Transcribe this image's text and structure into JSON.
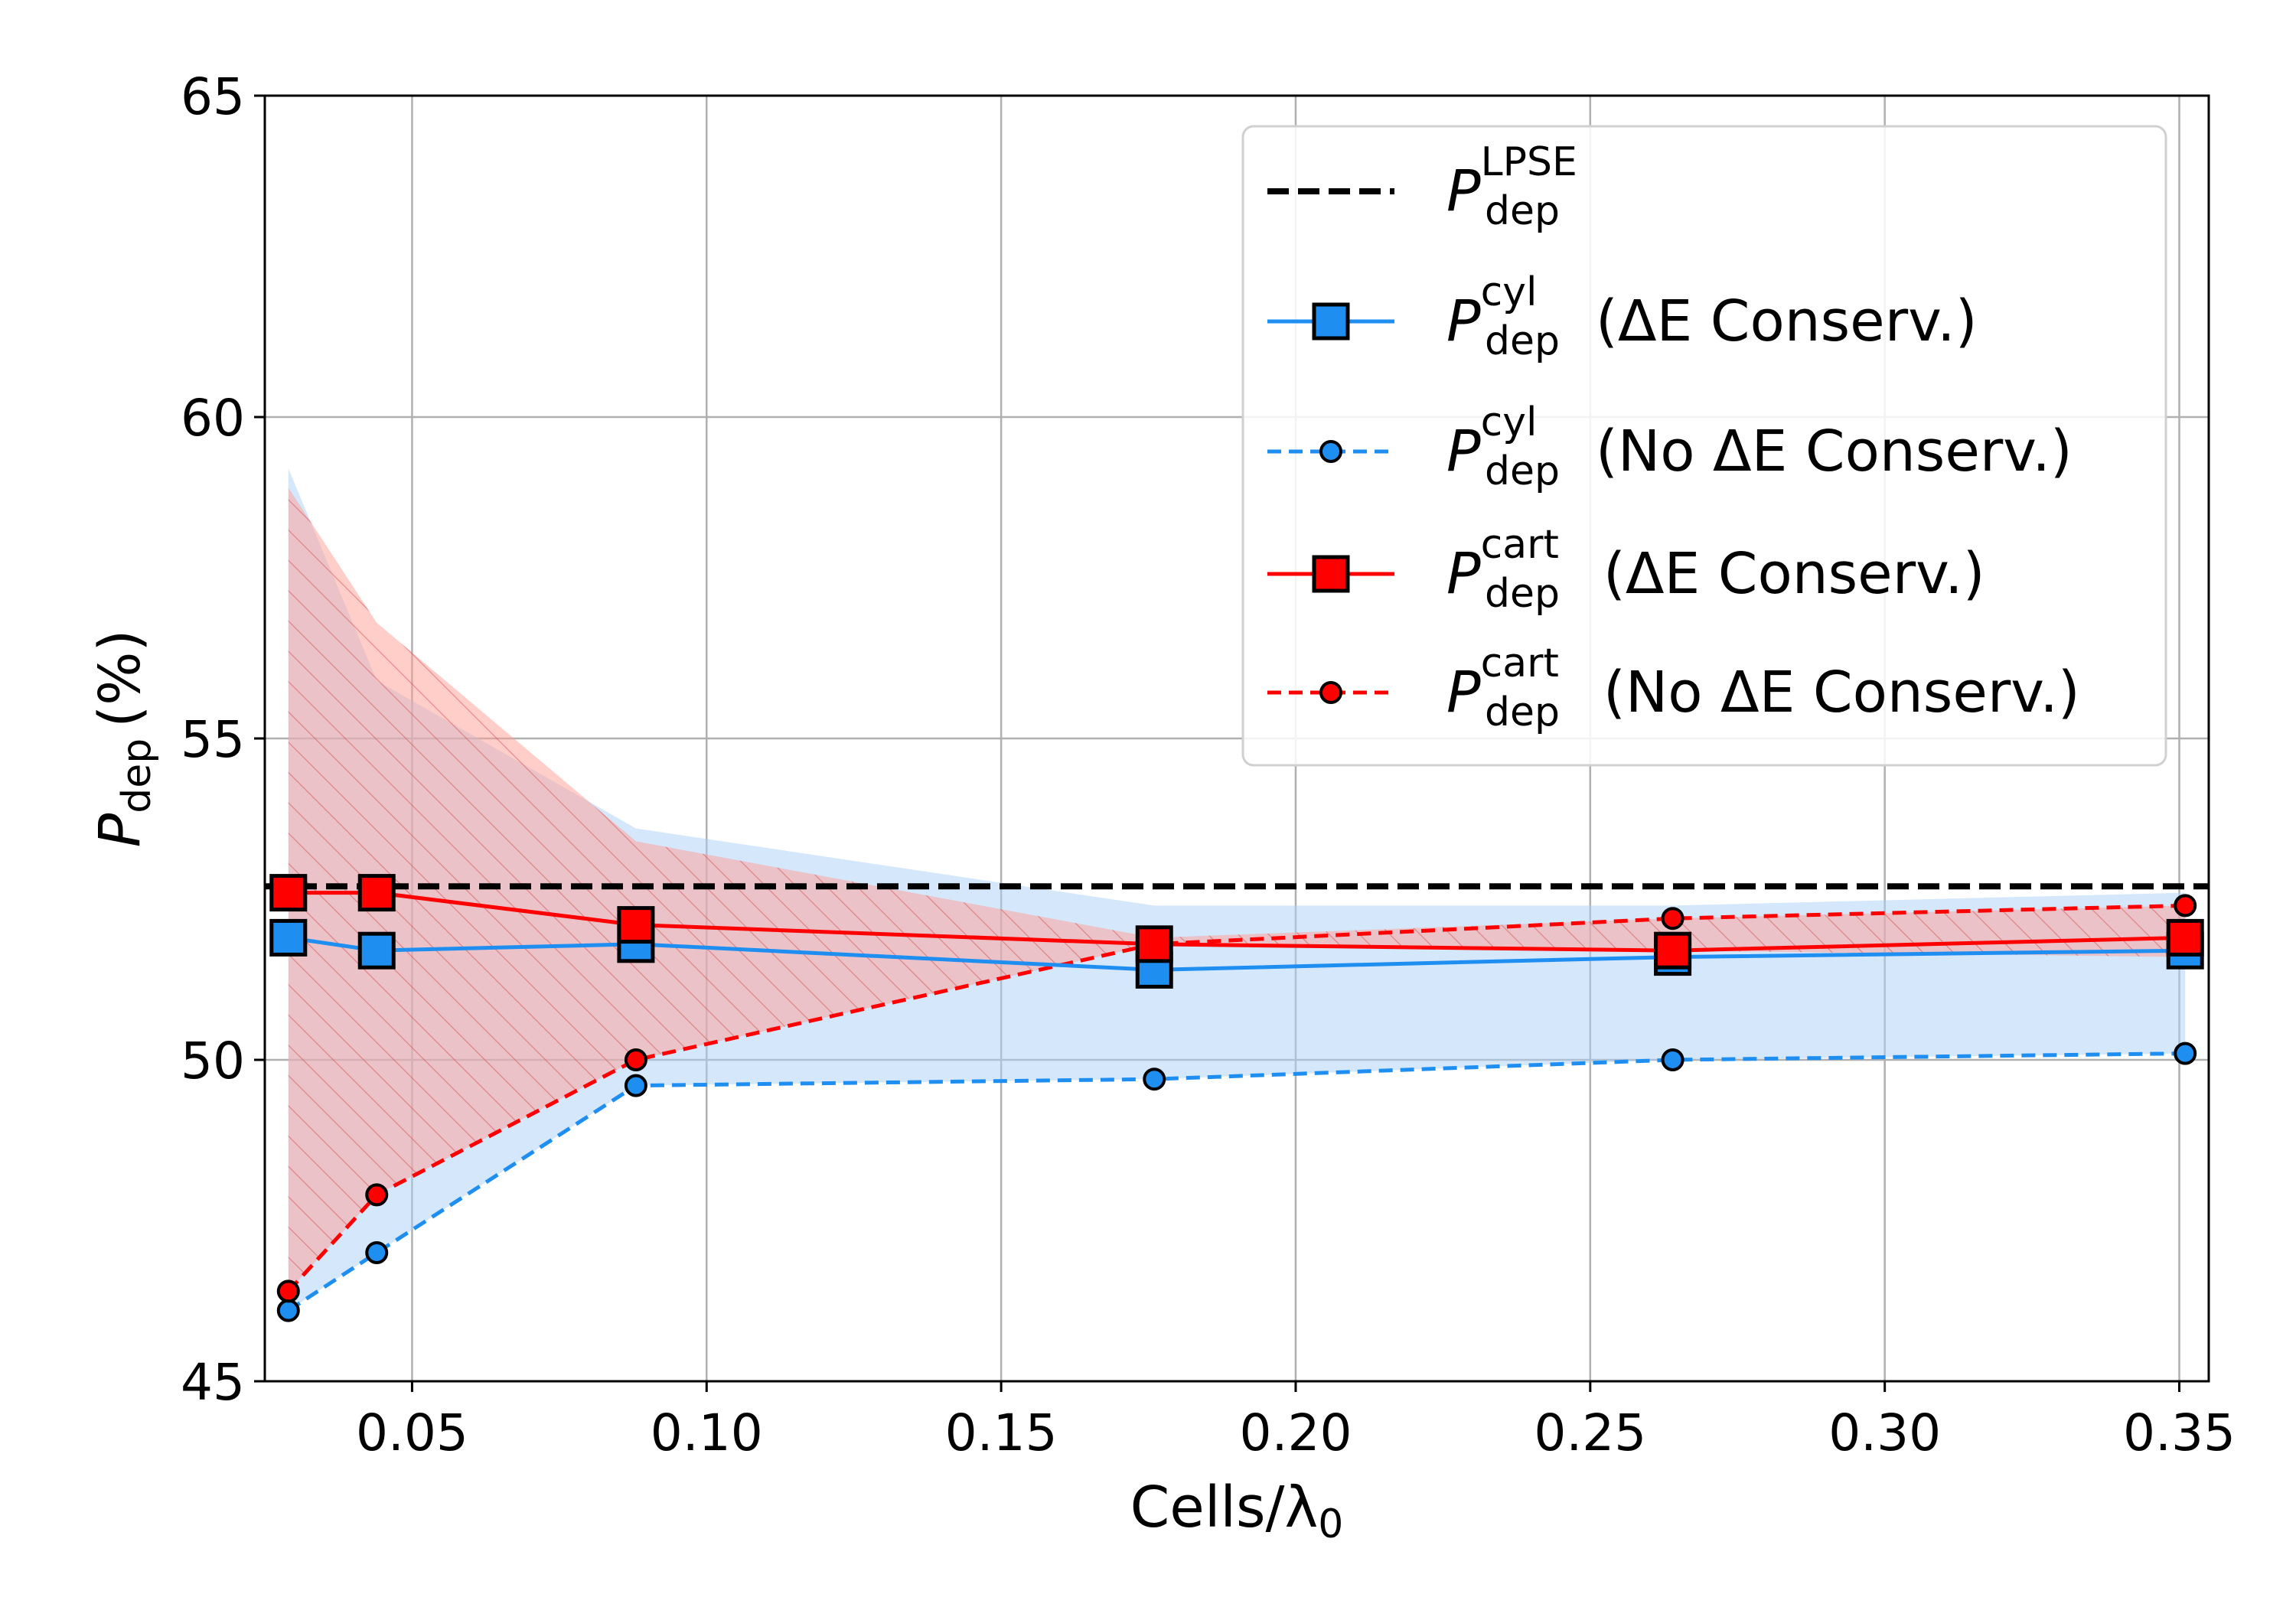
{
  "chart_data": {
    "type": "line",
    "xlabel": "Cells/λ0",
    "ylabel": "Pdep (%)",
    "xlim": [
      0.025,
      0.355
    ],
    "ylim": [
      45,
      65
    ],
    "xticks": [
      0.05,
      0.1,
      0.15,
      0.2,
      0.25,
      0.3,
      0.35
    ],
    "xtick_labels": [
      "0.05",
      "0.10",
      "0.15",
      "0.20",
      "0.25",
      "0.30",
      "0.35"
    ],
    "yticks": [
      45,
      50,
      55,
      60,
      65
    ],
    "ytick_labels": [
      "45",
      "50",
      "55",
      "60",
      "65"
    ],
    "grid": true,
    "legend_position": "top-right",
    "x": [
      0.029,
      0.044,
      0.088,
      0.176,
      0.264,
      0.351
    ],
    "reference_line": {
      "name": "P_dep^LPSE",
      "value": 52.7,
      "color": "#000000",
      "style": "dashed"
    },
    "series": [
      {
        "name": "P_dep^cyl (ΔE Conserv.)",
        "values": [
          51.9,
          51.7,
          51.8,
          51.4,
          51.6,
          51.7
        ],
        "color": "#1f8ef1",
        "style": "solid",
        "marker": "square"
      },
      {
        "name": "P_dep^cyl (No ΔE Conserv.)",
        "values": [
          46.1,
          47.0,
          49.6,
          49.7,
          50.0,
          50.1
        ],
        "color": "#1f8ef1",
        "style": "dashed",
        "marker": "circle"
      },
      {
        "name": "P_dep^cart (ΔE Conserv.)",
        "values": [
          52.6,
          52.6,
          52.1,
          51.8,
          51.7,
          51.9
        ],
        "color": "#ff0000",
        "style": "solid",
        "marker": "square"
      },
      {
        "name": "P_dep^cart (No ΔE Conserv.)",
        "values": [
          46.4,
          47.9,
          50.0,
          51.8,
          52.2,
          52.4
        ],
        "color": "#ff0000",
        "style": "dashed",
        "marker": "circle"
      }
    ],
    "bands": [
      {
        "name": "cyl-band",
        "color": "#a9cff7",
        "upper": [
          59.2,
          55.9,
          53.6,
          52.4,
          52.4,
          52.6
        ],
        "lower": [
          46.1,
          47.0,
          49.6,
          49.7,
          50.0,
          50.1
        ]
      },
      {
        "name": "cart-band",
        "color": "#ff9e94",
        "upper": [
          58.9,
          56.8,
          53.4,
          51.9,
          52.2,
          52.4
        ],
        "lower": [
          46.4,
          47.9,
          50.0,
          51.8,
          51.7,
          51.6
        ]
      }
    ]
  },
  "legend": {
    "P_symbol": "P",
    "sub": "dep",
    "lpse_sup": "LPSE",
    "cyl_sup": "cyl",
    "cart_sup": "cart",
    "conserv_text": "(ΔE Conserv.)",
    "noconserv_text": "(No ΔE Conserv.)"
  },
  "axes": {
    "xlabel_main": "Cells/λ",
    "xlabel_sub": "0",
    "ylabel_P": "P",
    "ylabel_sub": "dep",
    "ylabel_unit": "(%)"
  }
}
